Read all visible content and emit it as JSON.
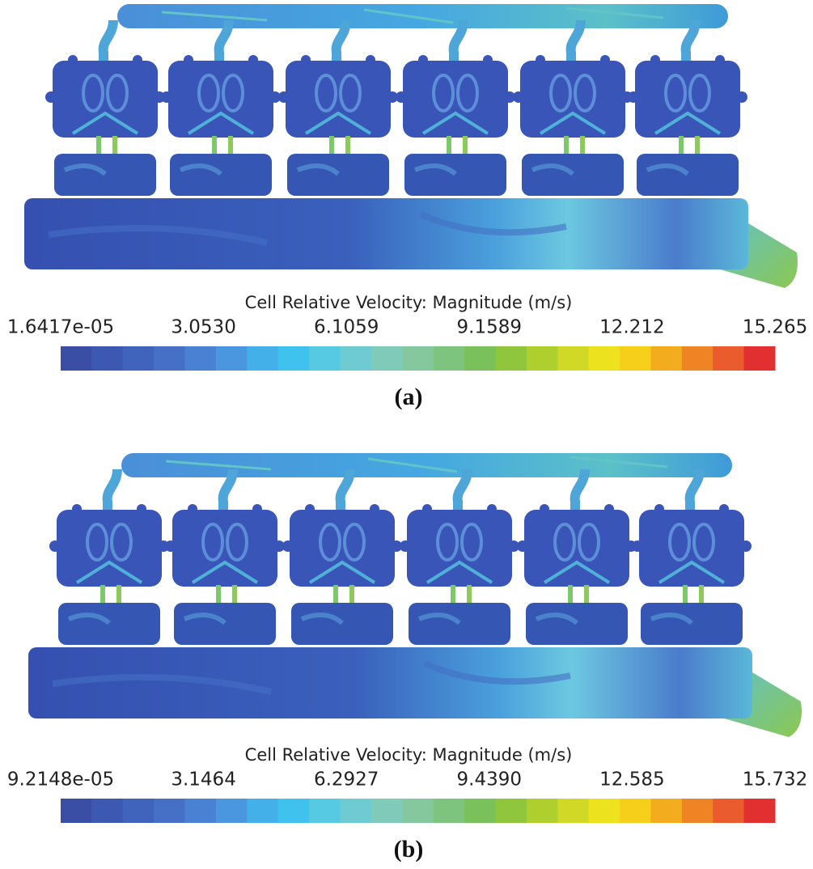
{
  "colormap": [
    "#3b4ea6",
    "#3d58b0",
    "#4063bb",
    "#4570c6",
    "#4a82d3",
    "#4b97df",
    "#44b0e9",
    "#3fc2ee",
    "#56c9e3",
    "#6fcbd2",
    "#80cab9",
    "#86c89d",
    "#7fc47e",
    "#7ac05b",
    "#8fc63c",
    "#aecf2e",
    "#cfd926",
    "#ede21e",
    "#f6cf1a",
    "#f3ac1d",
    "#ef8424",
    "#ea5b2d",
    "#e22f30"
  ],
  "panels": [
    {
      "colorbar": {
        "title": "Cell Relative Velocity: Magnitude (m/s)",
        "ticks": [
          "1.6417e-05",
          "3.0530",
          "6.1059",
          "9.1589",
          "12.212",
          "15.265"
        ]
      },
      "label": "(a)"
    },
    {
      "colorbar": {
        "title": "Cell Relative Velocity: Magnitude (m/s)",
        "ticks": [
          "9.2148e-05",
          "3.1464",
          "6.2927",
          "9.4390",
          "12.585",
          "15.732"
        ]
      },
      "label": "(b)"
    }
  ]
}
